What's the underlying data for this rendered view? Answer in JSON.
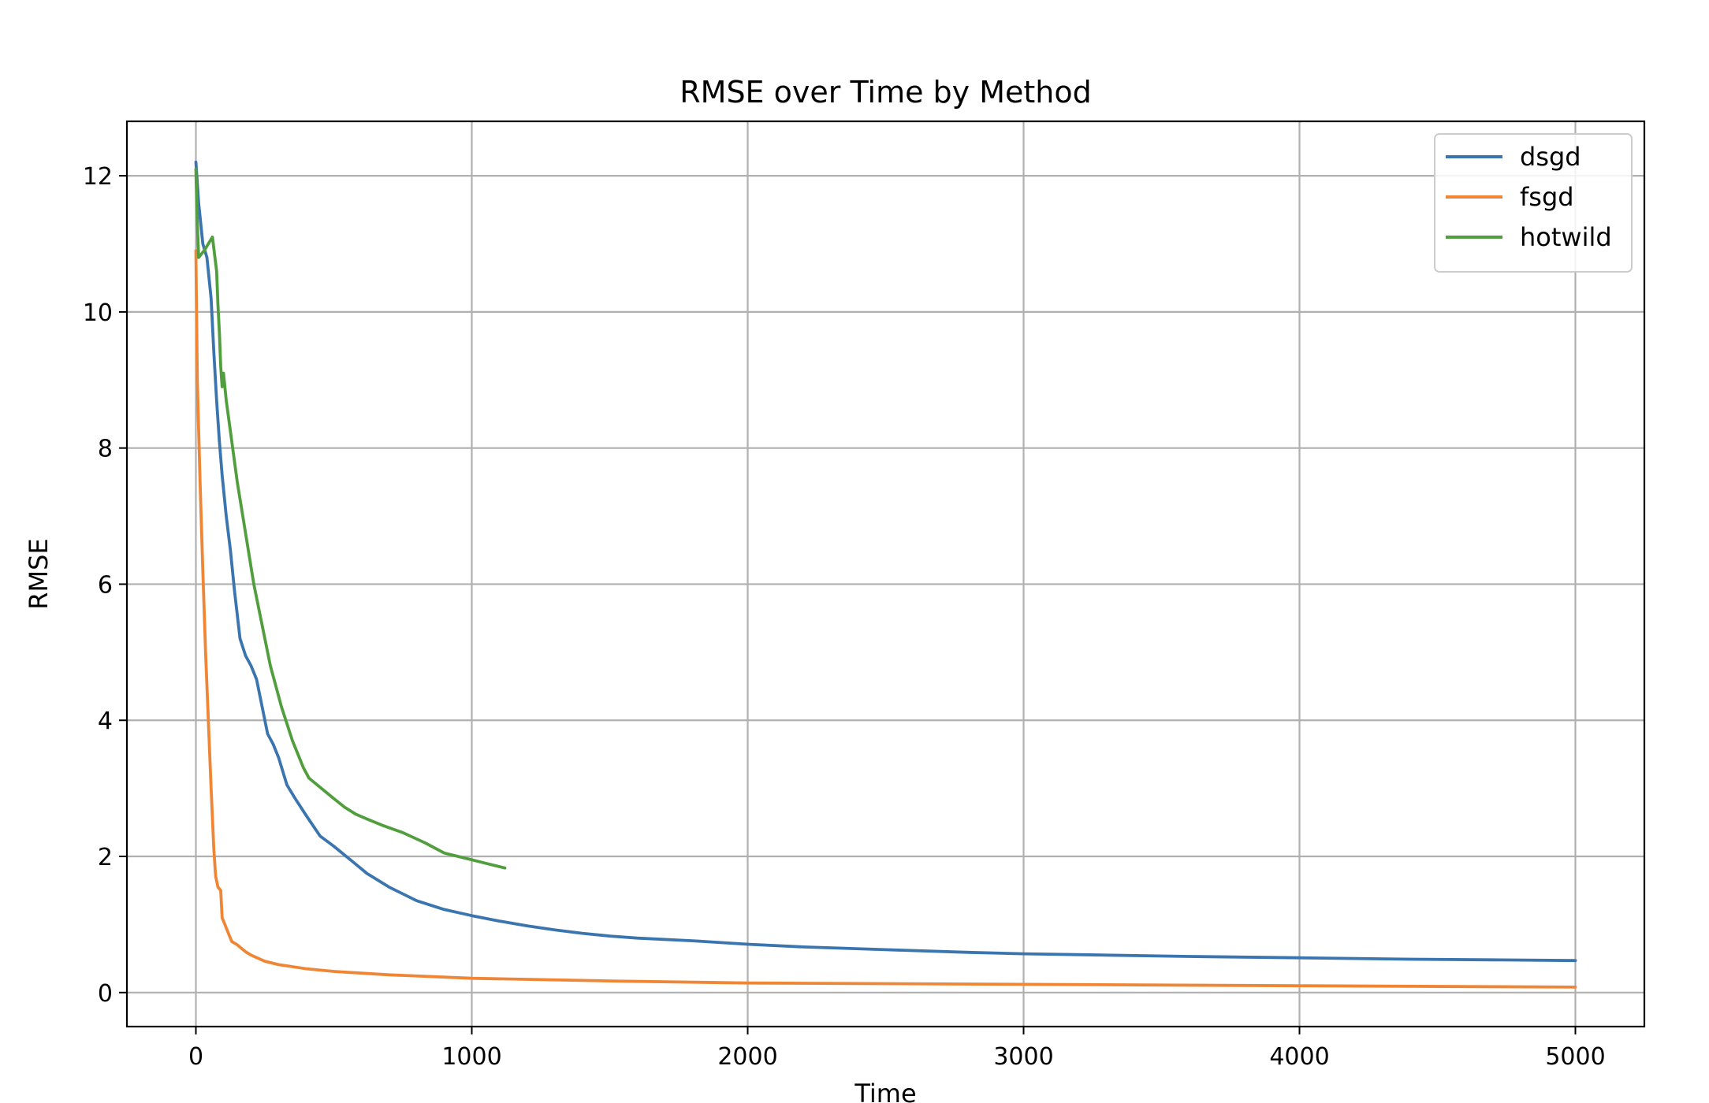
{
  "chart_data": {
    "type": "line",
    "title": "RMSE over Time by Method",
    "xlabel": "Time",
    "ylabel": "RMSE",
    "xlim": [
      -250,
      5250
    ],
    "ylim": [
      -0.5,
      12.8
    ],
    "xticks": [
      0,
      1000,
      2000,
      3000,
      4000,
      5000
    ],
    "yticks": [
      0,
      2,
      4,
      6,
      8,
      10,
      12
    ],
    "grid": true,
    "legend_position": "top-right",
    "series": [
      {
        "name": "dsgd",
        "color": "#3b75af",
        "x": [
          0,
          10,
          25,
          40,
          55,
          65,
          75,
          85,
          95,
          110,
          125,
          140,
          160,
          180,
          200,
          220,
          240,
          260,
          280,
          300,
          330,
          360,
          400,
          450,
          500,
          560,
          620,
          700,
          800,
          900,
          1000,
          1100,
          1200,
          1300,
          1400,
          1500,
          1600,
          1800,
          2000,
          2200,
          2500,
          2800,
          3000,
          3300,
          3600,
          4000,
          4400,
          4700,
          5000
        ],
        "values": [
          12.2,
          11.6,
          11.0,
          10.8,
          10.2,
          9.4,
          8.7,
          8.1,
          7.6,
          7.0,
          6.5,
          5.9,
          5.2,
          4.95,
          4.8,
          4.6,
          4.2,
          3.8,
          3.65,
          3.45,
          3.05,
          2.85,
          2.6,
          2.3,
          2.15,
          1.95,
          1.75,
          1.55,
          1.35,
          1.22,
          1.13,
          1.05,
          0.98,
          0.92,
          0.87,
          0.83,
          0.8,
          0.76,
          0.71,
          0.67,
          0.63,
          0.59,
          0.57,
          0.55,
          0.53,
          0.51,
          0.49,
          0.48,
          0.47
        ]
      },
      {
        "name": "fsgd",
        "color": "#ef8636",
        "x": [
          0,
          5,
          15,
          25,
          35,
          45,
          55,
          65,
          70,
          72,
          80,
          90,
          95,
          100,
          110,
          120,
          130,
          150,
          180,
          200,
          250,
          300,
          400,
          500,
          700,
          1000,
          1500,
          2000,
          3000,
          4000,
          5000
        ],
        "values": [
          10.9,
          9.0,
          7.5,
          6.2,
          5.0,
          4.0,
          3.0,
          2.1,
          1.8,
          1.7,
          1.55,
          1.5,
          1.1,
          1.05,
          0.95,
          0.85,
          0.75,
          0.7,
          0.6,
          0.55,
          0.46,
          0.41,
          0.35,
          0.31,
          0.26,
          0.21,
          0.17,
          0.14,
          0.12,
          0.1,
          0.08
        ]
      },
      {
        "name": "hotwild",
        "color": "#519e3e",
        "x": [
          0,
          5,
          10,
          30,
          60,
          75,
          80,
          85,
          90,
          95,
          100,
          110,
          120,
          130,
          140,
          150,
          170,
          190,
          210,
          230,
          250,
          270,
          290,
          310,
          330,
          350,
          370,
          390,
          410,
          440,
          470,
          500,
          540,
          580,
          620,
          680,
          750,
          830,
          900,
          950,
          1000,
          1050,
          1100,
          1120
        ],
        "values": [
          12.1,
          11.3,
          10.8,
          10.9,
          11.1,
          10.6,
          10.1,
          9.7,
          9.2,
          8.9,
          9.1,
          8.7,
          8.4,
          8.1,
          7.8,
          7.5,
          7.0,
          6.5,
          6.0,
          5.6,
          5.2,
          4.8,
          4.5,
          4.2,
          3.95,
          3.7,
          3.5,
          3.3,
          3.15,
          3.05,
          2.95,
          2.85,
          2.72,
          2.62,
          2.55,
          2.45,
          2.35,
          2.2,
          2.05,
          2.0,
          1.95,
          1.9,
          1.85,
          1.83
        ]
      }
    ]
  }
}
